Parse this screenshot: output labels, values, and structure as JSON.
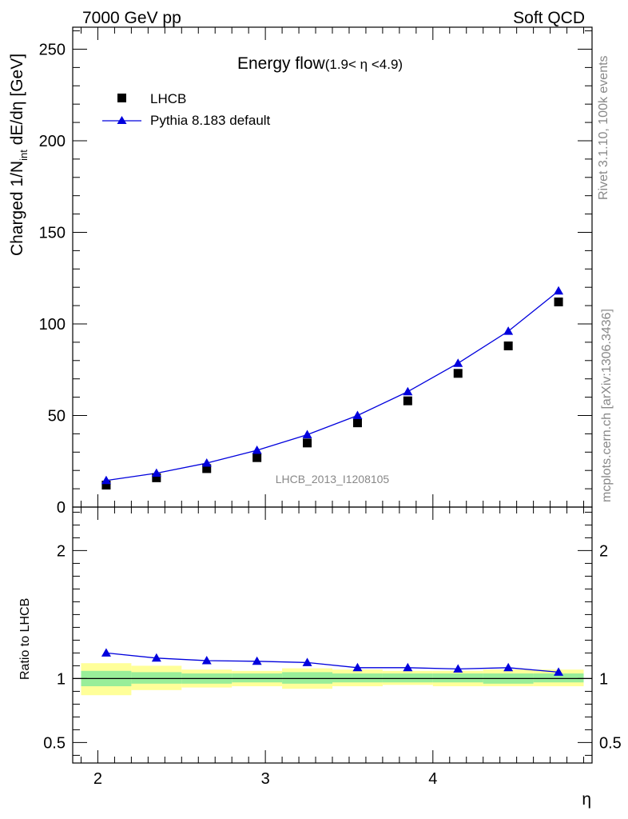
{
  "header": {
    "left": "7000 GeV pp",
    "right": "Soft QCD"
  },
  "side_labels": {
    "top": "Rivet 3.1.10,  100k events",
    "bottom": "mcplots.cern.ch [arXiv:1306.3436]"
  },
  "analysis_tag": "LHCB_2013_I1208105",
  "chart_data": [
    {
      "type": "scatter",
      "title": "Energy flow",
      "title_sub": "(1.9< η <4.9)",
      "ylabel": "Charged 1/N_int dE/dη [GeV]",
      "ylabel_main": "Charged 1/N",
      "ylabel_sub": "int",
      "ylabel_tail": " dE/dη [GeV]",
      "xlim": [
        1.85,
        4.95
      ],
      "ylim": [
        0,
        262
      ],
      "yticks": [
        0,
        50,
        100,
        150,
        200,
        250
      ],
      "ytick_labels": [
        "0",
        "50",
        "100",
        "150",
        "200",
        "250"
      ],
      "legend_position": "top-left",
      "x": [
        2.05,
        2.35,
        2.65,
        2.95,
        3.25,
        3.55,
        3.85,
        4.15,
        4.45,
        4.75
      ],
      "series": [
        {
          "name": "LHCB",
          "marker": "square",
          "color": "#000000",
          "values": [
            12,
            16,
            21,
            27,
            35,
            46,
            58,
            73,
            88,
            112
          ]
        },
        {
          "name": "Pythia 8.183 default",
          "marker": "triangle",
          "color": "#0000dd",
          "values": [
            14.5,
            18.5,
            24,
            31,
            39.5,
            50,
            63,
            78.5,
            96,
            118
          ]
        }
      ]
    },
    {
      "type": "line",
      "ylabel": "Ratio to LHCB",
      "xlabel": "η",
      "xlim": [
        1.85,
        4.95
      ],
      "ylim": [
        0.34,
        2.34
      ],
      "yticks": [
        0.5,
        1,
        2
      ],
      "ytick_labels": [
        "0.5",
        "1",
        "2"
      ],
      "xticks": [
        2,
        3,
        4
      ],
      "xtick_labels": [
        "2",
        "3",
        "4"
      ],
      "x": [
        2.05,
        2.35,
        2.65,
        2.95,
        3.25,
        3.55,
        3.85,
        4.15,
        4.45,
        4.75
      ],
      "bin_edges": [
        1.9,
        2.2,
        2.5,
        2.8,
        3.1,
        3.4,
        3.7,
        4.0,
        4.3,
        4.6,
        4.9
      ],
      "band_yellow": {
        "color": "#ffff99",
        "low": [
          0.87,
          0.91,
          0.93,
          0.94,
          0.92,
          0.94,
          0.95,
          0.94,
          0.94,
          0.94
        ],
        "high": [
          1.12,
          1.1,
          1.07,
          1.06,
          1.08,
          1.07,
          1.06,
          1.06,
          1.07,
          1.07
        ]
      },
      "band_green": {
        "color": "#99ee99",
        "low": [
          0.94,
          0.96,
          0.96,
          0.97,
          0.96,
          0.97,
          0.97,
          0.97,
          0.96,
          0.97
        ],
        "high": [
          1.06,
          1.05,
          1.04,
          1.04,
          1.05,
          1.04,
          1.04,
          1.04,
          1.04,
          1.04
        ]
      },
      "series": [
        {
          "name": "Pythia 8.183 default",
          "marker": "triangle",
          "color": "#0000dd",
          "values": [
            1.2,
            1.16,
            1.14,
            1.135,
            1.125,
            1.085,
            1.085,
            1.075,
            1.085,
            1.05
          ]
        }
      ]
    }
  ]
}
